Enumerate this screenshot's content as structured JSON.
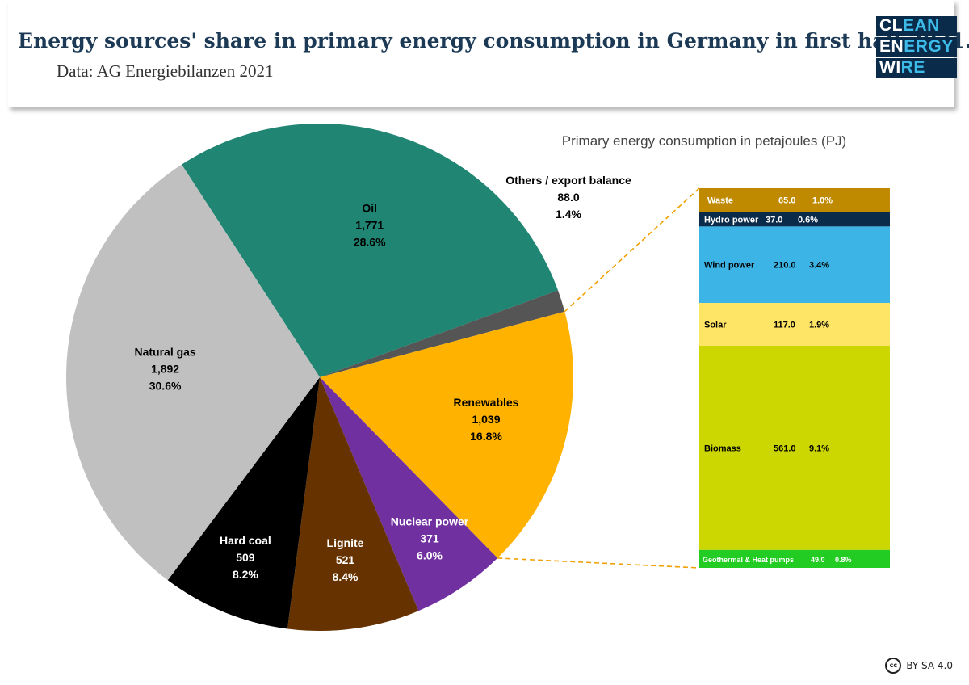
{
  "header": {
    "title": "Energy sources' share in primary energy consumption in Germany in first half 2021.",
    "subtitle": "Data: AG Energiebilanzen 2021",
    "logo_lines": [
      "CLEAN",
      "ENERGY",
      "WIRE"
    ]
  },
  "license": {
    "text": "BY SA 4.0",
    "icon": "creative-commons-icon"
  },
  "chart_data": [
    {
      "type": "pie",
      "title": "",
      "unit_label": "Primary energy consumption in petajoules (PJ)",
      "slices": [
        {
          "label": "Oil",
          "value": "1,771",
          "share": "28.6%",
          "percent": 28.6,
          "color": "#208673"
        },
        {
          "label": "Others / export balance",
          "value": "88.0",
          "share": "1.4%",
          "percent": 1.4,
          "color": "#555555"
        },
        {
          "label": "Renewables",
          "value": "1,039",
          "share": "16.8%",
          "percent": 16.8,
          "color": "#ffb300"
        },
        {
          "label": "Nuclear power",
          "value": "371",
          "share": "6.0%",
          "percent": 6.0,
          "color": "#7030a0"
        },
        {
          "label": "Lignite",
          "value": "521",
          "share": "8.4%",
          "percent": 8.4,
          "color": "#663300"
        },
        {
          "label": "Hard coal",
          "value": "509",
          "share": "8.2%",
          "percent": 8.2,
          "color": "#000000"
        },
        {
          "label": "Natural gas",
          "value": "1,892",
          "share": "30.6%",
          "percent": 30.6,
          "color": "#c0c0c0"
        }
      ]
    },
    {
      "type": "bar",
      "stacked": true,
      "title": "",
      "breakdown_of": "Renewables",
      "segments": [
        {
          "label": "Waste",
          "value": "65.0",
          "share": "1.0%",
          "color": "#c08a00",
          "text_color": "#ffffff"
        },
        {
          "label": "Hydro power",
          "value": "37.0",
          "share": "0.6%",
          "color": "#0b2b4a",
          "text_color": "#ffffff"
        },
        {
          "label": "Wind power",
          "value": "210.0",
          "share": "3.4%",
          "color": "#3db4e6",
          "text_color": "#000000"
        },
        {
          "label": "Solar",
          "value": "117.0",
          "share": "1.9%",
          "color": "#ffe566",
          "text_color": "#000000"
        },
        {
          "label": "Biomass",
          "value": "561.0",
          "share": "9.1%",
          "color": "#ccd600",
          "text_color": "#000000"
        },
        {
          "label": "Geothermal & Heat pumps",
          "value": "49.0",
          "share": "0.8%",
          "color": "#22cc22",
          "text_color": "#ffffff"
        }
      ]
    }
  ]
}
